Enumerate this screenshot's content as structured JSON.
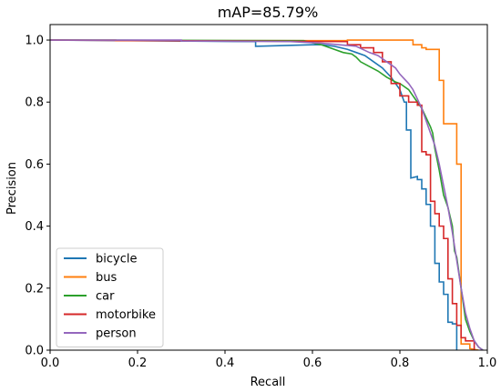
{
  "chart_data": {
    "type": "line",
    "title": "mAP=85.79%",
    "xlabel": "Recall",
    "ylabel": "Precision",
    "xlim": [
      0.0,
      1.0
    ],
    "ylim": [
      0.0,
      1.05
    ],
    "xticks": [
      "0.0",
      "0.2",
      "0.4",
      "0.6",
      "0.8",
      "1.0"
    ],
    "yticks": [
      "0.0",
      "0.2",
      "0.4",
      "0.6",
      "0.8",
      "1.0"
    ],
    "grid": false,
    "legend_position": "lower-left",
    "series": [
      {
        "name": "bicycle",
        "color": "#1f77b4",
        "x": [
          0.0,
          0.47,
          0.47,
          0.6,
          0.62,
          0.65,
          0.68,
          0.7,
          0.72,
          0.74,
          0.76,
          0.78,
          0.8,
          0.81,
          0.815,
          0.815,
          0.825,
          0.825,
          0.84,
          0.84,
          0.85,
          0.85,
          0.86,
          0.86,
          0.87,
          0.87,
          0.88,
          0.88,
          0.89,
          0.89,
          0.9,
          0.9,
          0.91,
          0.91,
          0.92,
          0.92,
          0.93,
          0.93
        ],
        "y": [
          1.0,
          0.995,
          0.98,
          0.985,
          0.985,
          0.98,
          0.97,
          0.96,
          0.95,
          0.93,
          0.91,
          0.88,
          0.84,
          0.8,
          0.8,
          0.71,
          0.71,
          0.555,
          0.56,
          0.55,
          0.55,
          0.52,
          0.52,
          0.47,
          0.47,
          0.4,
          0.4,
          0.28,
          0.28,
          0.22,
          0.22,
          0.18,
          0.18,
          0.09,
          0.09,
          0.085,
          0.085,
          0.0
        ]
      },
      {
        "name": "bus",
        "color": "#ff7f0e",
        "x": [
          0.0,
          0.15,
          0.15,
          0.68,
          0.68,
          0.83,
          0.83,
          0.85,
          0.85,
          0.86,
          0.86,
          0.89,
          0.89,
          0.9,
          0.9,
          0.93,
          0.93,
          0.94,
          0.94,
          0.96,
          0.96,
          0.98
        ],
        "y": [
          1.0,
          1.0,
          0.998,
          0.998,
          1.0,
          1.0,
          0.985,
          0.985,
          0.975,
          0.975,
          0.97,
          0.97,
          0.87,
          0.87,
          0.73,
          0.73,
          0.6,
          0.6,
          0.02,
          0.02,
          0.005,
          0.0
        ]
      },
      {
        "name": "car",
        "color": "#2ca02c",
        "x": [
          0.0,
          0.58,
          0.62,
          0.65,
          0.67,
          0.69,
          0.7,
          0.71,
          0.73,
          0.75,
          0.77,
          0.79,
          0.8,
          0.82,
          0.83,
          0.84,
          0.85,
          0.86,
          0.87,
          0.875,
          0.88,
          0.89,
          0.9,
          0.91,
          0.92,
          0.925,
          0.93,
          0.94,
          0.95,
          0.96,
          0.97,
          0.98,
          0.99
        ],
        "y": [
          1.0,
          0.998,
          0.985,
          0.97,
          0.96,
          0.955,
          0.945,
          0.93,
          0.915,
          0.9,
          0.88,
          0.865,
          0.86,
          0.84,
          0.82,
          0.8,
          0.78,
          0.75,
          0.72,
          0.7,
          0.65,
          0.58,
          0.5,
          0.46,
          0.4,
          0.32,
          0.3,
          0.2,
          0.1,
          0.06,
          0.03,
          0.01,
          0.0
        ]
      },
      {
        "name": "motorbike",
        "color": "#d62728",
        "x": [
          0.0,
          0.68,
          0.68,
          0.71,
          0.71,
          0.74,
          0.74,
          0.76,
          0.76,
          0.78,
          0.78,
          0.8,
          0.8,
          0.82,
          0.82,
          0.84,
          0.84,
          0.85,
          0.85,
          0.86,
          0.86,
          0.87,
          0.87,
          0.88,
          0.88,
          0.89,
          0.89,
          0.9,
          0.9,
          0.91,
          0.91,
          0.92,
          0.92,
          0.93,
          0.93,
          0.94,
          0.94,
          0.95,
          0.95,
          0.97,
          0.97
        ],
        "y": [
          1.0,
          0.995,
          0.985,
          0.985,
          0.975,
          0.975,
          0.96,
          0.96,
          0.93,
          0.93,
          0.86,
          0.86,
          0.82,
          0.82,
          0.8,
          0.8,
          0.79,
          0.79,
          0.64,
          0.64,
          0.63,
          0.63,
          0.48,
          0.48,
          0.44,
          0.44,
          0.4,
          0.4,
          0.36,
          0.36,
          0.23,
          0.23,
          0.15,
          0.15,
          0.08,
          0.08,
          0.04,
          0.04,
          0.03,
          0.03,
          0.0
        ]
      },
      {
        "name": "person",
        "color": "#9467bd",
        "x": [
          0.0,
          0.3,
          0.3,
          0.55,
          0.62,
          0.66,
          0.7,
          0.73,
          0.75,
          0.77,
          0.79,
          0.8,
          0.81,
          0.82,
          0.83,
          0.84,
          0.85,
          0.86,
          0.87,
          0.88,
          0.89,
          0.9,
          0.91,
          0.92,
          0.93,
          0.94,
          0.95,
          0.96,
          0.97,
          0.98,
          0.99
        ],
        "y": [
          1.0,
          1.0,
          0.997,
          0.995,
          0.99,
          0.985,
          0.98,
          0.96,
          0.95,
          0.93,
          0.91,
          0.89,
          0.875,
          0.86,
          0.84,
          0.81,
          0.78,
          0.74,
          0.7,
          0.66,
          0.6,
          0.53,
          0.46,
          0.38,
          0.29,
          0.2,
          0.12,
          0.07,
          0.03,
          0.01,
          0.0
        ]
      }
    ]
  }
}
